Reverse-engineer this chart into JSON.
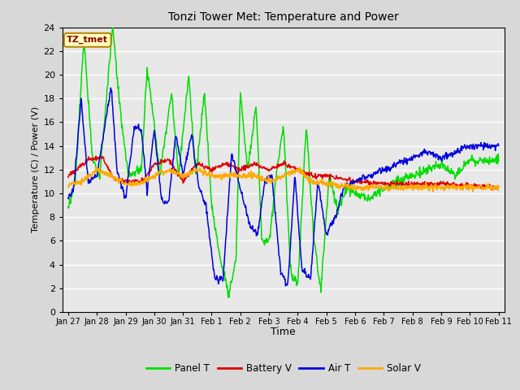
{
  "title": "Tonzi Tower Met: Temperature and Power",
  "xlabel": "Time",
  "ylabel": "Temperature (C) / Power (V)",
  "ylim": [
    0,
    24
  ],
  "yticks": [
    0,
    2,
    4,
    6,
    8,
    10,
    12,
    14,
    16,
    18,
    20,
    22,
    24
  ],
  "annotation_text": "TZ_tmet",
  "annotation_bg": "#ffffc0",
  "annotation_border": "#b8860b",
  "legend_labels": [
    "Panel T",
    "Battery V",
    "Air T",
    "Solar V"
  ],
  "legend_colors": [
    "#00dd00",
    "#dd0000",
    "#0000dd",
    "#ffaa00"
  ],
  "line_colors": {
    "panel": "#00dd00",
    "battery": "#dd0000",
    "air": "#0000dd",
    "solar": "#ffaa00"
  },
  "bg_color": "#e8e8e8",
  "grid_color": "#ffffff",
  "xtick_labels": [
    "Jan 27",
    "Jan 28",
    "Jan 29",
    "Jan 30",
    "Jan 31",
    "Feb 1",
    "Feb 2",
    "Feb 3",
    "Feb 4",
    "Feb 5",
    "Feb 6",
    "Feb 7",
    "Feb 8",
    "Feb 9",
    "Feb 10",
    "Feb 11"
  ],
  "n_days": 15
}
